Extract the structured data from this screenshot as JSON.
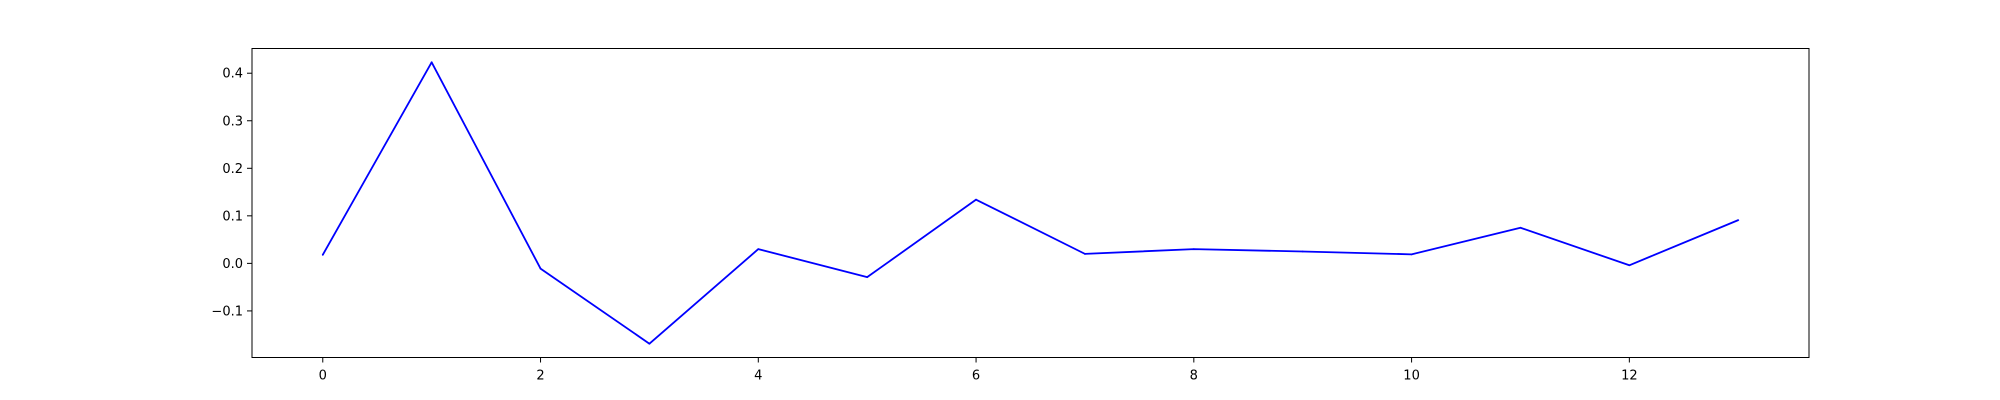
{
  "chart_data": {
    "type": "line",
    "title": "",
    "xlabel": "",
    "ylabel": "",
    "x": [
      0,
      1,
      2,
      3,
      4,
      5,
      6,
      7,
      8,
      9,
      10,
      11,
      12,
      13
    ],
    "series": [
      {
        "values": [
          0.018,
          0.423,
          -0.011,
          -0.169,
          0.03,
          -0.029,
          0.134,
          0.02,
          0.03,
          0.025,
          0.019,
          0.075,
          -0.004,
          0.091
        ],
        "color": "#0000ff"
      }
    ],
    "xlim": [
      -0.65,
      13.65
    ],
    "ylim": [
      -0.198,
      0.452
    ],
    "xticks": [
      0,
      2,
      4,
      6,
      8,
      10,
      12
    ],
    "xtick_labels": [
      "0",
      "2",
      "4",
      "6",
      "8",
      "10",
      "12"
    ],
    "yticks": [
      -0.1,
      0.0,
      0.1,
      0.2,
      0.3,
      0.4
    ],
    "ytick_labels": [
      "−0.1",
      "0.0",
      "0.1",
      "0.2",
      "0.3",
      "0.4"
    ],
    "grid": false,
    "legend": "none"
  }
}
